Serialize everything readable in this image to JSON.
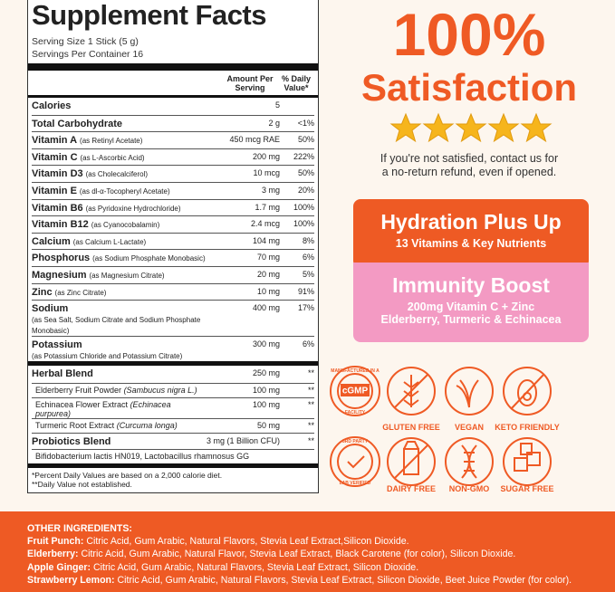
{
  "facts": {
    "title": "Supplement Facts",
    "serving_size": "Serving Size 1 Stick (5 g)",
    "servings_per_container": "Servings Per Container 16",
    "header_amount": "Amount Per Serving",
    "header_dv": "% Daily Value*",
    "rows": [
      {
        "name": "Calories",
        "amount": "5"
      },
      {
        "name": "Total Carbohydrate",
        "amount": "2 g",
        "dv": "<1%"
      },
      {
        "name": "Vitamin A",
        "detail": "(as Retinyl Acetate)",
        "amount": "450 mcg RAE",
        "dv": "50%"
      },
      {
        "name": "Vitamin C",
        "detail": "(as L-Ascorbic Acid)",
        "amount": "200 mg",
        "dv": "222%"
      },
      {
        "name": "Vitamin D3",
        "detail": "(as Cholecalciferol)",
        "amount": "10 mcg",
        "dv": "50%"
      },
      {
        "name": "Vitamin E",
        "detail": "(as dl-α-Tocopheryl Acetate)",
        "amount": "3 mg",
        "dv": "20%"
      },
      {
        "name": "Vitamin B6",
        "detail": "(as Pyridoxine Hydrochloride)",
        "amount": "1.7 mg",
        "dv": "100%"
      },
      {
        "name": "Vitamin B12",
        "detail": "(as Cyanocobalamin)",
        "amount": "2.4 mcg",
        "dv": "100%"
      },
      {
        "name": "Calcium",
        "detail": "(as Calcium L-Lactate)",
        "amount": "104 mg",
        "dv": "8%"
      },
      {
        "name": "Phosphorus",
        "detail": "(as Sodium Phosphate Monobasic)",
        "amount": "70 mg",
        "dv": "6%"
      },
      {
        "name": "Magnesium",
        "detail": "(as Magnesium Citrate)",
        "amount": "20 mg",
        "dv": "5%"
      },
      {
        "name": "Zinc",
        "detail": "(as Zinc Citrate)",
        "amount": "10 mg",
        "dv": "91%"
      },
      {
        "name": "Sodium",
        "detail": "(as Sea Salt, Sodium Citrate and Sodium Phosphate Monobasic)",
        "amount": "400 mg",
        "dv": "17%",
        "wrap": true
      },
      {
        "name": "Potassium",
        "detail": "(as Potassium Chloride and Potassium Citrate)",
        "amount": "300 mg",
        "dv": "6%",
        "wrap": true
      }
    ],
    "blends": [
      {
        "name": "Herbal Blend",
        "amount": "250 mg",
        "dv": "**",
        "items": [
          {
            "name": "Elderberry Fruit Powder",
            "latin": "(Sambucus nigra L.)",
            "amount": "100 mg",
            "dv": "**"
          },
          {
            "name": "Echinacea Flower Extract",
            "latin": "(Echinacea purpurea)",
            "amount": "100 mg",
            "dv": "**"
          },
          {
            "name": "Turmeric Root Extract",
            "latin": "(Curcuma longa)",
            "amount": "50 mg",
            "dv": "**"
          }
        ]
      },
      {
        "name": "Probiotics Blend",
        "amount": "3 mg (1 Billion CFU)",
        "dv": "**",
        "items": [
          {
            "name": "Bifidobacterium lactis HN019, Lactobacillus rhamnosus GG"
          }
        ]
      }
    ],
    "footnotes": [
      "*Percent Daily Values are based on a 2,000 calorie diet.",
      "**Daily Value not established."
    ]
  },
  "promo": {
    "headline": "100%",
    "subheadline": "Satisfaction",
    "guarantee": [
      "If you're not satisfied, contact us for",
      "a no-return refund, even if opened."
    ],
    "hydration": {
      "title": "Hydration Plus Up",
      "subtitle": "13 Vitamins & Key Nutrients"
    },
    "immunity": {
      "title": "Immunity Boost",
      "lines": [
        "200mg Vitamin C + Zinc",
        "Elderberry, Turmeric & Echinacea"
      ]
    }
  },
  "badges": {
    "cgmp": {
      "top": "MANUFACTURED IN A",
      "center": "cGMP",
      "bottom": "FACILITY"
    },
    "lab": {
      "top": "3RD PARTY",
      "bottom": "LAB VERIFIED"
    },
    "labels": [
      "GLUTEN FREE",
      "VEGAN",
      "KETO FRIENDLY",
      "DAIRY FREE",
      "NON-GMO",
      "SUGAR FREE"
    ]
  },
  "ingredients": {
    "title": "OTHER INGREDIENTS:",
    "items": [
      {
        "name": "Fruit Punch:",
        "text": "Citric Acid, Gum Arabic, Natural Flavors, Stevia Leaf Extract,Silicon Dioxide."
      },
      {
        "name": "Elderberry:",
        "text": "Citric Acid, Gum Arabic, Natural Flavor, Stevia Leaf Extract, Black Carotene (for color), Silicon Dioxide."
      },
      {
        "name": "Apple Ginger:",
        "text": "Citric Acid, Gum Arabic, Natural Flavors, Stevia Leaf Extract, Silicon Dioxide."
      },
      {
        "name": "Strawberry Lemon:",
        "text": "Citric Acid, Gum Arabic, Natural Flavors, Stevia Leaf Extract, Silicon Dioxide, Beet Juice Powder (for color)."
      }
    ]
  }
}
